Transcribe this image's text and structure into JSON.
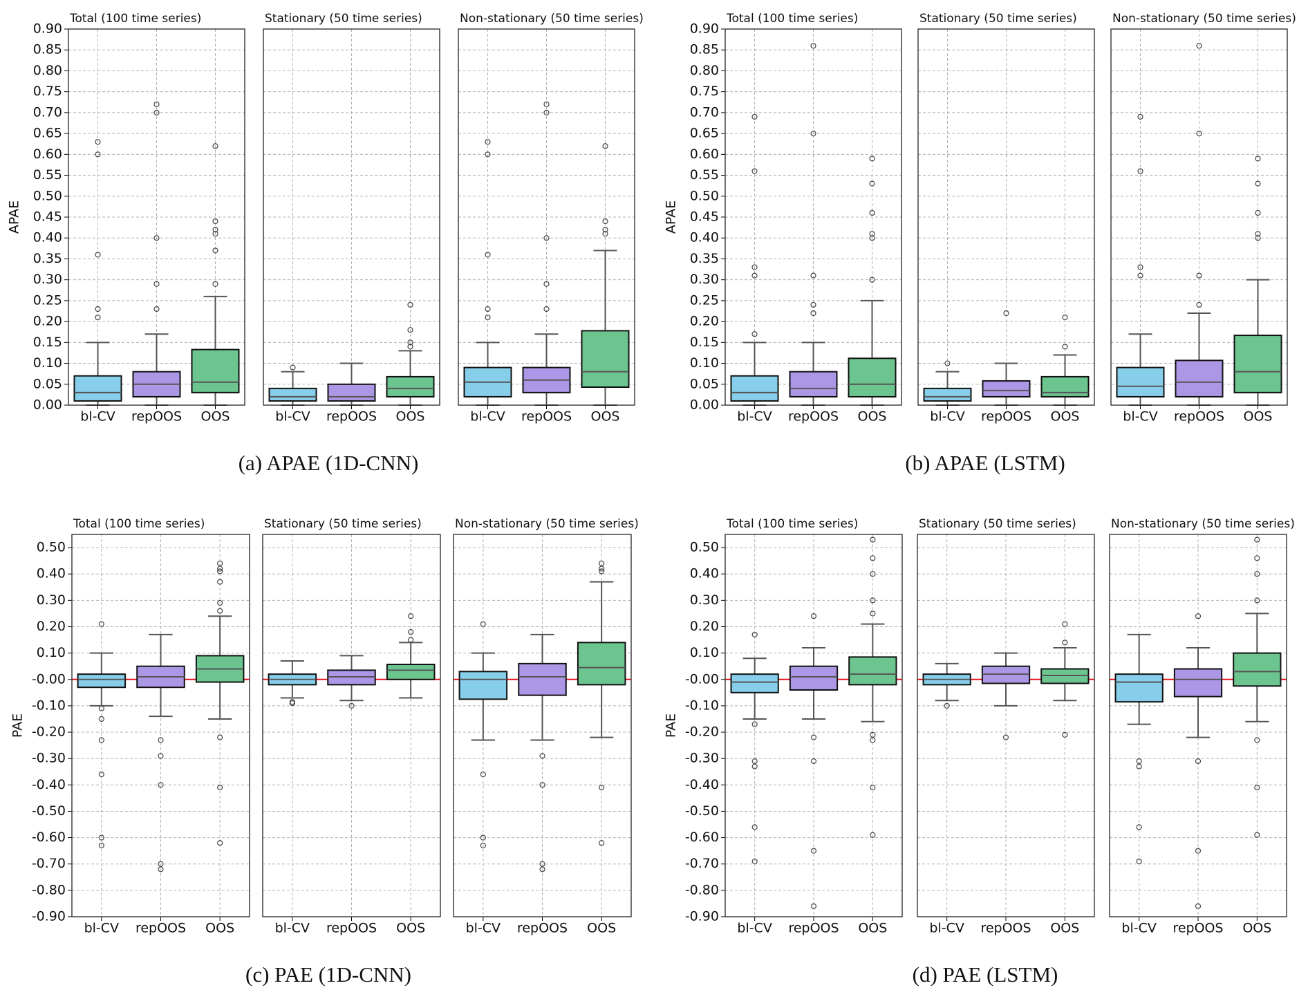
{
  "chart_data": [
    {
      "type": "box",
      "caption": "(a) APAE (1D-CNN)",
      "ylabel": "APAE",
      "categories": [
        "bl-CV",
        "repOOS",
        "OOS"
      ],
      "colors": [
        "#87ceeb",
        "#ac96e6",
        "#6cc58f"
      ],
      "grid": true,
      "ylim": [
        0,
        0.9
      ],
      "yticks": [
        {
          "value": 0,
          "label": "0.00"
        },
        {
          "value": 0.05,
          "label": "0.05"
        },
        {
          "value": 0.1,
          "label": "0.10"
        },
        {
          "value": 0.15,
          "label": "0.15"
        },
        {
          "value": 0.2,
          "label": "0.20"
        },
        {
          "value": 0.25,
          "label": "0.25"
        },
        {
          "value": 0.3,
          "label": "0.30"
        },
        {
          "value": 0.35,
          "label": "0.35"
        },
        {
          "value": 0.4,
          "label": "0.40"
        },
        {
          "value": 0.45,
          "label": "0.45"
        },
        {
          "value": 0.5,
          "label": "0.50"
        },
        {
          "value": 0.55,
          "label": "0.55"
        },
        {
          "value": 0.6,
          "label": "0.60"
        },
        {
          "value": 0.65,
          "label": "0.65"
        },
        {
          "value": 0.7,
          "label": "0.70"
        },
        {
          "value": 0.75,
          "label": "0.75"
        },
        {
          "value": 0.8,
          "label": "0.80"
        },
        {
          "value": 0.85,
          "label": "0.85"
        },
        {
          "value": 0.9,
          "label": "0.90"
        }
      ],
      "panels": [
        {
          "title": "Total (100 time series)",
          "boxes": [
            {
              "whislo": 0,
              "q1": 0.01,
              "med": 0.03,
              "q3": 0.07,
              "whishi": 0.15,
              "fliers": [
                0.21,
                0.23,
                0.36,
                0.6,
                0.63
              ]
            },
            {
              "whislo": 0,
              "q1": 0.02,
              "med": 0.05,
              "q3": 0.08,
              "whishi": 0.17,
              "fliers": [
                0.23,
                0.29,
                0.4,
                0.7,
                0.72
              ]
            },
            {
              "whislo": 0,
              "q1": 0.03,
              "med": 0.055,
              "q3": 0.133,
              "whishi": 0.26,
              "fliers": [
                0.29,
                0.37,
                0.41,
                0.42,
                0.44,
                0.62
              ]
            }
          ]
        },
        {
          "title": "Stationary (50 time series)",
          "boxes": [
            {
              "whislo": 0,
              "q1": 0.01,
              "med": 0.02,
              "q3": 0.04,
              "whishi": 0.08,
              "fliers": [
                0.09
              ]
            },
            {
              "whislo": 0,
              "q1": 0.01,
              "med": 0.02,
              "q3": 0.05,
              "whishi": 0.1,
              "fliers": []
            },
            {
              "whislo": 0,
              "q1": 0.02,
              "med": 0.04,
              "q3": 0.068,
              "whishi": 0.13,
              "fliers": [
                0.14,
                0.15,
                0.18,
                0.24
              ]
            }
          ]
        },
        {
          "title": "Non-stationary (50 time series)",
          "boxes": [
            {
              "whislo": 0,
              "q1": 0.02,
              "med": 0.055,
              "q3": 0.09,
              "whishi": 0.15,
              "fliers": [
                0.21,
                0.23,
                0.36,
                0.6,
                0.63
              ]
            },
            {
              "whislo": 0,
              "q1": 0.03,
              "med": 0.06,
              "q3": 0.09,
              "whishi": 0.17,
              "fliers": [
                0.23,
                0.29,
                0.4,
                0.7,
                0.72
              ]
            },
            {
              "whislo": 0,
              "q1": 0.043,
              "med": 0.08,
              "q3": 0.178,
              "whishi": 0.37,
              "fliers": [
                0.41,
                0.42,
                0.44,
                0.62
              ]
            }
          ]
        }
      ]
    },
    {
      "type": "box",
      "caption": "(b) APAE (LSTM)",
      "ylabel": "APAE",
      "categories": [
        "bl-CV",
        "repOOS",
        "OOS"
      ],
      "colors": [
        "#87ceeb",
        "#ac96e6",
        "#6cc58f"
      ],
      "grid": true,
      "ylim": [
        0,
        0.9
      ],
      "yticks": [
        {
          "value": 0,
          "label": "0.00"
        },
        {
          "value": 0.05,
          "label": "0.05"
        },
        {
          "value": 0.1,
          "label": "0.10"
        },
        {
          "value": 0.15,
          "label": "0.15"
        },
        {
          "value": 0.2,
          "label": "0.20"
        },
        {
          "value": 0.25,
          "label": "0.25"
        },
        {
          "value": 0.3,
          "label": "0.30"
        },
        {
          "value": 0.35,
          "label": "0.35"
        },
        {
          "value": 0.4,
          "label": "0.40"
        },
        {
          "value": 0.45,
          "label": "0.45"
        },
        {
          "value": 0.5,
          "label": "0.50"
        },
        {
          "value": 0.55,
          "label": "0.55"
        },
        {
          "value": 0.6,
          "label": "0.60"
        },
        {
          "value": 0.65,
          "label": "0.65"
        },
        {
          "value": 0.7,
          "label": "0.70"
        },
        {
          "value": 0.75,
          "label": "0.75"
        },
        {
          "value": 0.8,
          "label": "0.80"
        },
        {
          "value": 0.85,
          "label": "0.85"
        },
        {
          "value": 0.9,
          "label": "0.90"
        }
      ],
      "panels": [
        {
          "title": "Total (100 time series)",
          "boxes": [
            {
              "whislo": 0,
              "q1": 0.01,
              "med": 0.03,
              "q3": 0.07,
              "whishi": 0.15,
              "fliers": [
                0.17,
                0.31,
                0.33,
                0.56,
                0.69
              ]
            },
            {
              "whislo": 0,
              "q1": 0.02,
              "med": 0.04,
              "q3": 0.08,
              "whishi": 0.15,
              "fliers": [
                0.22,
                0.24,
                0.31,
                0.65,
                0.86
              ]
            },
            {
              "whislo": 0,
              "q1": 0.02,
              "med": 0.05,
              "q3": 0.112,
              "whishi": 0.25,
              "fliers": [
                0.3,
                0.4,
                0.41,
                0.46,
                0.53,
                0.59
              ]
            }
          ]
        },
        {
          "title": "Stationary (50 time series)",
          "boxes": [
            {
              "whislo": 0,
              "q1": 0.01,
              "med": 0.02,
              "q3": 0.04,
              "whishi": 0.08,
              "fliers": [
                0.1
              ]
            },
            {
              "whislo": 0,
              "q1": 0.02,
              "med": 0.035,
              "q3": 0.058,
              "whishi": 0.1,
              "fliers": [
                0.22
              ]
            },
            {
              "whislo": 0,
              "q1": 0.02,
              "med": 0.03,
              "q3": 0.068,
              "whishi": 0.12,
              "fliers": [
                0.14,
                0.21
              ]
            }
          ]
        },
        {
          "title": "Non-stationary (50 time series)",
          "boxes": [
            {
              "whislo": 0,
              "q1": 0.02,
              "med": 0.045,
              "q3": 0.09,
              "whishi": 0.17,
              "fliers": [
                0.31,
                0.33,
                0.56,
                0.69
              ]
            },
            {
              "whislo": 0,
              "q1": 0.02,
              "med": 0.055,
              "q3": 0.107,
              "whishi": 0.22,
              "fliers": [
                0.24,
                0.31,
                0.65,
                0.86
              ]
            },
            {
              "whislo": 0,
              "q1": 0.03,
              "med": 0.08,
              "q3": 0.167,
              "whishi": 0.3,
              "fliers": [
                0.4,
                0.41,
                0.46,
                0.53,
                0.59
              ]
            }
          ]
        }
      ]
    },
    {
      "type": "box",
      "caption": "(c) PAE (1D-CNN)",
      "ylabel": "PAE",
      "categories": [
        "bl-CV",
        "repOOS",
        "OOS"
      ],
      "colors": [
        "#87ceeb",
        "#ac96e6",
        "#6cc58f"
      ],
      "grid": true,
      "refline": 0,
      "refcolor": "#e8141c",
      "ylim": [
        -0.9,
        0.55
      ],
      "yticks": [
        {
          "value": -0.9,
          "label": "-0.90"
        },
        {
          "value": -0.8,
          "label": "-0.80"
        },
        {
          "value": -0.7,
          "label": "-0.70"
        },
        {
          "value": -0.6,
          "label": "-0.60"
        },
        {
          "value": -0.5,
          "label": "-0.50"
        },
        {
          "value": -0.4,
          "label": "-0.40"
        },
        {
          "value": -0.3,
          "label": "-0.30"
        },
        {
          "value": -0.2,
          "label": "-0.20"
        },
        {
          "value": -0.1,
          "label": "-0.10"
        },
        {
          "value": 0,
          "label": "-0.00"
        },
        {
          "value": 0.1,
          "label": "0.10"
        },
        {
          "value": 0.2,
          "label": "0.20"
        },
        {
          "value": 0.3,
          "label": "0.30"
        },
        {
          "value": 0.4,
          "label": "0.40"
        },
        {
          "value": 0.5,
          "label": "0.50"
        }
      ],
      "panels": [
        {
          "title": "Total (100 time series)",
          "boxes": [
            {
              "whislo": -0.1,
              "q1": -0.03,
              "med": 0,
              "q3": 0.02,
              "whishi": 0.1,
              "fliers": [
                -0.63,
                -0.6,
                -0.36,
                -0.23,
                -0.15,
                -0.11,
                0.21
              ]
            },
            {
              "whislo": -0.14,
              "q1": -0.03,
              "med": 0.01,
              "q3": 0.05,
              "whishi": 0.17,
              "fliers": [
                -0.72,
                -0.7,
                -0.4,
                -0.29,
                -0.23
              ]
            },
            {
              "whislo": -0.15,
              "q1": -0.01,
              "med": 0.04,
              "q3": 0.09,
              "whishi": 0.24,
              "fliers": [
                -0.62,
                -0.41,
                -0.22,
                0.26,
                0.29,
                0.37,
                0.41,
                0.42,
                0.44
              ]
            }
          ]
        },
        {
          "title": "Stationary (50 time series)",
          "boxes": [
            {
              "whislo": -0.07,
              "q1": -0.02,
              "med": 0,
              "q3": 0.02,
              "whishi": 0.07,
              "fliers": [
                -0.09,
                -0.085
              ]
            },
            {
              "whislo": -0.08,
              "q1": -0.02,
              "med": 0.01,
              "q3": 0.035,
              "whishi": 0.09,
              "fliers": [
                -0.1
              ]
            },
            {
              "whislo": -0.07,
              "q1": 0,
              "med": 0.035,
              "q3": 0.057,
              "whishi": 0.14,
              "fliers": [
                0.15,
                0.18,
                0.24
              ]
            }
          ]
        },
        {
          "title": "Non-stationary (50 time series)",
          "boxes": [
            {
              "whislo": -0.23,
              "q1": -0.075,
              "med": 0,
              "q3": 0.03,
              "whishi": 0.1,
              "fliers": [
                -0.63,
                -0.6,
                -0.36,
                0.21
              ]
            },
            {
              "whislo": -0.23,
              "q1": -0.06,
              "med": 0.01,
              "q3": 0.06,
              "whishi": 0.17,
              "fliers": [
                -0.72,
                -0.7,
                -0.4,
                -0.29
              ]
            },
            {
              "whislo": -0.22,
              "q1": -0.02,
              "med": 0.045,
              "q3": 0.14,
              "whishi": 0.37,
              "fliers": [
                -0.62,
                -0.41,
                0.41,
                0.42,
                0.44
              ]
            }
          ]
        }
      ]
    },
    {
      "type": "box",
      "caption": "(d) PAE (LSTM)",
      "ylabel": "PAE",
      "categories": [
        "bl-CV",
        "repOOS",
        "OOS"
      ],
      "colors": [
        "#87ceeb",
        "#ac96e6",
        "#6cc58f"
      ],
      "grid": true,
      "refline": 0,
      "refcolor": "#e8141c",
      "ylim": [
        -0.9,
        0.55
      ],
      "yticks": [
        {
          "value": -0.9,
          "label": "-0.90"
        },
        {
          "value": -0.8,
          "label": "-0.80"
        },
        {
          "value": -0.7,
          "label": "-0.70"
        },
        {
          "value": -0.6,
          "label": "-0.60"
        },
        {
          "value": -0.5,
          "label": "-0.50"
        },
        {
          "value": -0.4,
          "label": "-0.40"
        },
        {
          "value": -0.3,
          "label": "-0.30"
        },
        {
          "value": -0.2,
          "label": "-0.20"
        },
        {
          "value": -0.1,
          "label": "-0.10"
        },
        {
          "value": 0,
          "label": "-0.00"
        },
        {
          "value": 0.1,
          "label": "0.10"
        },
        {
          "value": 0.2,
          "label": "0.20"
        },
        {
          "value": 0.3,
          "label": "0.30"
        },
        {
          "value": 0.4,
          "label": "0.40"
        },
        {
          "value": 0.5,
          "label": "0.50"
        }
      ],
      "panels": [
        {
          "title": "Total (100 time series)",
          "boxes": [
            {
              "whislo": -0.15,
              "q1": -0.05,
              "med": -0.01,
              "q3": 0.02,
              "whishi": 0.08,
              "fliers": [
                -0.69,
                -0.56,
                -0.33,
                -0.31,
                -0.17,
                0.17
              ]
            },
            {
              "whislo": -0.15,
              "q1": -0.04,
              "med": 0.01,
              "q3": 0.05,
              "whishi": 0.12,
              "fliers": [
                -0.86,
                -0.65,
                -0.31,
                -0.22,
                0.24
              ]
            },
            {
              "whislo": -0.16,
              "q1": -0.02,
              "med": 0.02,
              "q3": 0.085,
              "whishi": 0.21,
              "fliers": [
                -0.59,
                -0.41,
                -0.23,
                -0.21,
                0.25,
                0.3,
                0.4,
                0.46,
                0.53
              ]
            }
          ]
        },
        {
          "title": "Stationary (50 time series)",
          "boxes": [
            {
              "whislo": -0.08,
              "q1": -0.02,
              "med": 0,
              "q3": 0.02,
              "whishi": 0.06,
              "fliers": [
                -0.1
              ]
            },
            {
              "whislo": -0.1,
              "q1": -0.015,
              "med": 0.02,
              "q3": 0.05,
              "whishi": 0.1,
              "fliers": [
                -0.22
              ]
            },
            {
              "whislo": -0.08,
              "q1": -0.015,
              "med": 0.015,
              "q3": 0.04,
              "whishi": 0.12,
              "fliers": [
                -0.21,
                0.14,
                0.21
              ]
            }
          ]
        },
        {
          "title": "Non-stationary (50 time series)",
          "boxes": [
            {
              "whislo": -0.17,
              "q1": -0.085,
              "med": -0.01,
              "q3": 0.02,
              "whishi": 0.17,
              "fliers": [
                -0.69,
                -0.56,
                -0.33,
                -0.31
              ]
            },
            {
              "whislo": -0.22,
              "q1": -0.065,
              "med": 0,
              "q3": 0.04,
              "whishi": 0.12,
              "fliers": [
                -0.86,
                -0.65,
                -0.31,
                0.24
              ]
            },
            {
              "whislo": -0.16,
              "q1": -0.025,
              "med": 0.03,
              "q3": 0.1,
              "whishi": 0.25,
              "fliers": [
                -0.59,
                -0.41,
                -0.23,
                0.3,
                0.4,
                0.46,
                0.53
              ]
            }
          ]
        }
      ]
    }
  ]
}
